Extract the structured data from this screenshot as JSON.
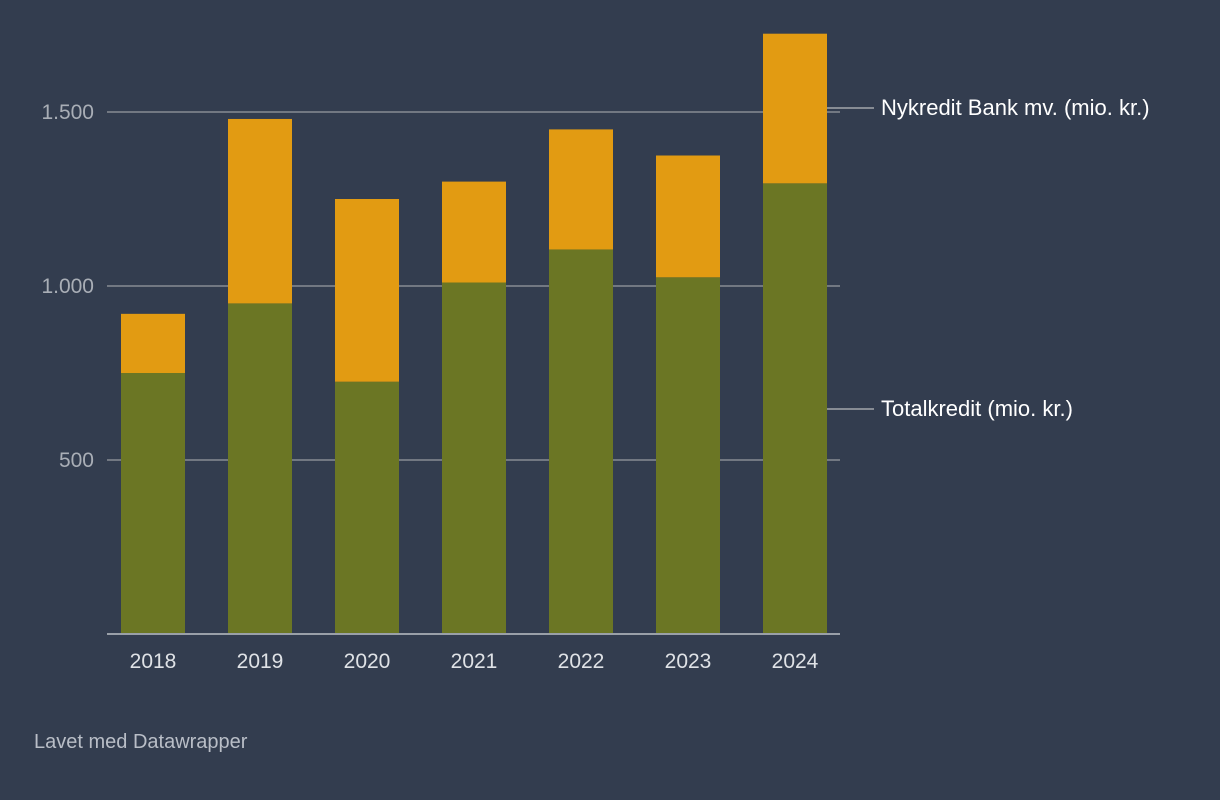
{
  "colors": {
    "background": "#333d4f",
    "totalkredit": "#6b7624",
    "nykredit_bank": "#e29b12",
    "grid": "#878c94",
    "tick_text": "#a9aeb6",
    "label_text": "#ffffff"
  },
  "chart_data": {
    "type": "bar",
    "stacked": true,
    "title": "",
    "xlabel": "",
    "ylabel": "",
    "ylim": [
      0,
      1750
    ],
    "yticks": [
      500,
      1000,
      1500
    ],
    "ytick_labels": [
      "500",
      "1.000",
      "1.500"
    ],
    "grid": true,
    "categories": [
      "2018",
      "2019",
      "2020",
      "2021",
      "2022",
      "2023",
      "2024"
    ],
    "series": [
      {
        "name": "Totalkredit (mio. kr.)",
        "color_key": "totalkredit",
        "values": [
          750,
          950,
          725,
          1010,
          1105,
          1025,
          1295
        ]
      },
      {
        "name": "Nykredit Bank mv. (mio. kr.)",
        "color_key": "nykredit_bank",
        "values": [
          170,
          530,
          525,
          290,
          345,
          350,
          430
        ]
      }
    ],
    "legend": "direct labels at right"
  },
  "footer": {
    "credit": "Lavet med Datawrapper"
  }
}
